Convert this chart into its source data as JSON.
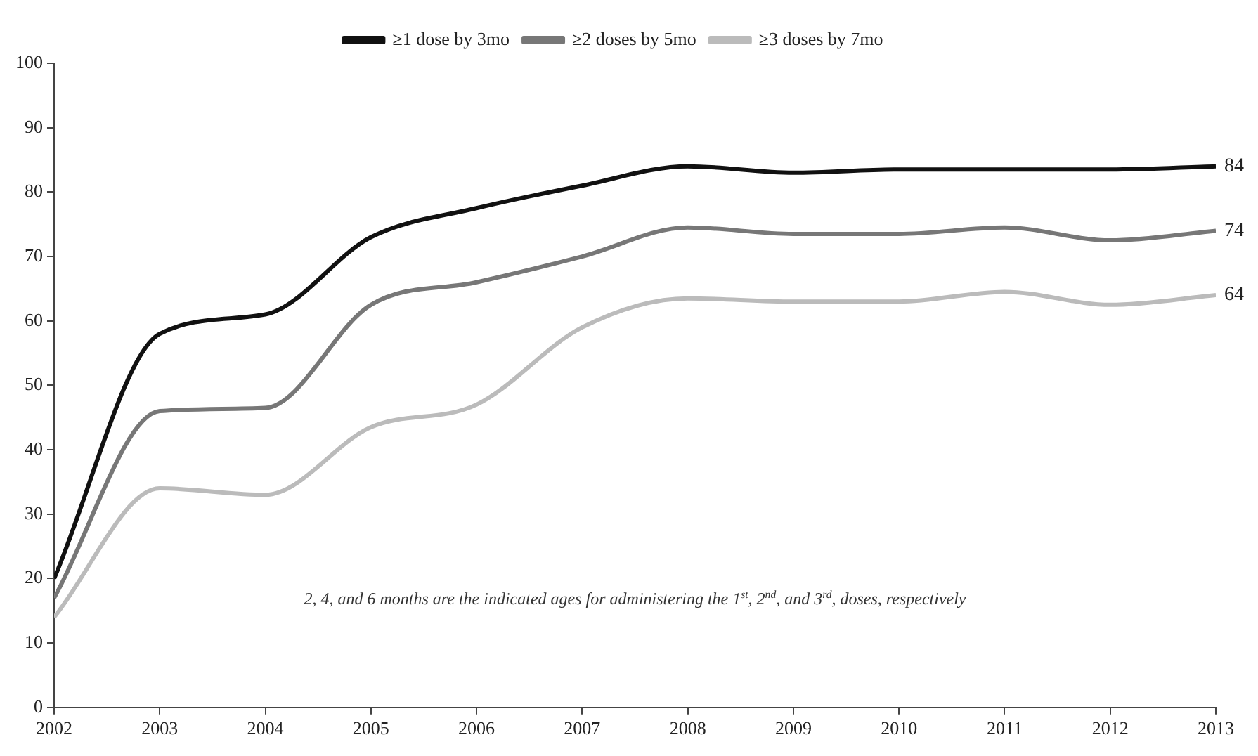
{
  "chart_data": {
    "type": "line",
    "x": [
      2002,
      2003,
      2004,
      2005,
      2006,
      2007,
      2008,
      2009,
      2010,
      2011,
      2012,
      2013
    ],
    "series": [
      {
        "name": "≥1 dose by 3mo",
        "color": "#111111",
        "values": [
          20,
          58,
          61,
          73,
          77.5,
          81,
          84,
          83,
          83.5,
          83.5,
          83.5,
          84
        ],
        "value_labels": [
          null,
          null,
          null,
          null,
          null,
          null,
          null,
          null,
          null,
          null,
          null,
          "84"
        ]
      },
      {
        "name": "≥2 doses by 5mo",
        "color": "#777777",
        "values": [
          17,
          46,
          46.5,
          62.5,
          66,
          70,
          74.5,
          73.5,
          73.5,
          74.5,
          72.5,
          74
        ],
        "value_labels": [
          null,
          null,
          null,
          null,
          null,
          null,
          null,
          null,
          null,
          null,
          null,
          "74"
        ]
      },
      {
        "name": "≥3 doses by 7mo",
        "color": "#bbbbbb",
        "values": [
          14,
          34,
          33,
          43.5,
          47,
          59,
          63.5,
          63,
          63,
          64.5,
          62.5,
          64
        ],
        "value_labels": [
          null,
          null,
          null,
          null,
          null,
          null,
          null,
          null,
          null,
          null,
          null,
          "64"
        ]
      }
    ],
    "xlim": [
      2002,
      2013
    ],
    "xticks": [
      2002,
      2003,
      2004,
      2005,
      2006,
      2007,
      2008,
      2009,
      2010,
      2011,
      2012,
      2013
    ],
    "ylim": [
      0,
      100
    ],
    "yticks": [
      0,
      10,
      20,
      30,
      40,
      50,
      60,
      70,
      80,
      90,
      100
    ],
    "grid": false,
    "legend": "top",
    "marker": "none",
    "line_style": "solid",
    "annotations": [
      "2, 4, and 6 months are the indicated ages for administering the 1$^{st}$, 2$^{nd}$, and 3$^{rd}$, doses, respectively"
    ]
  }
}
